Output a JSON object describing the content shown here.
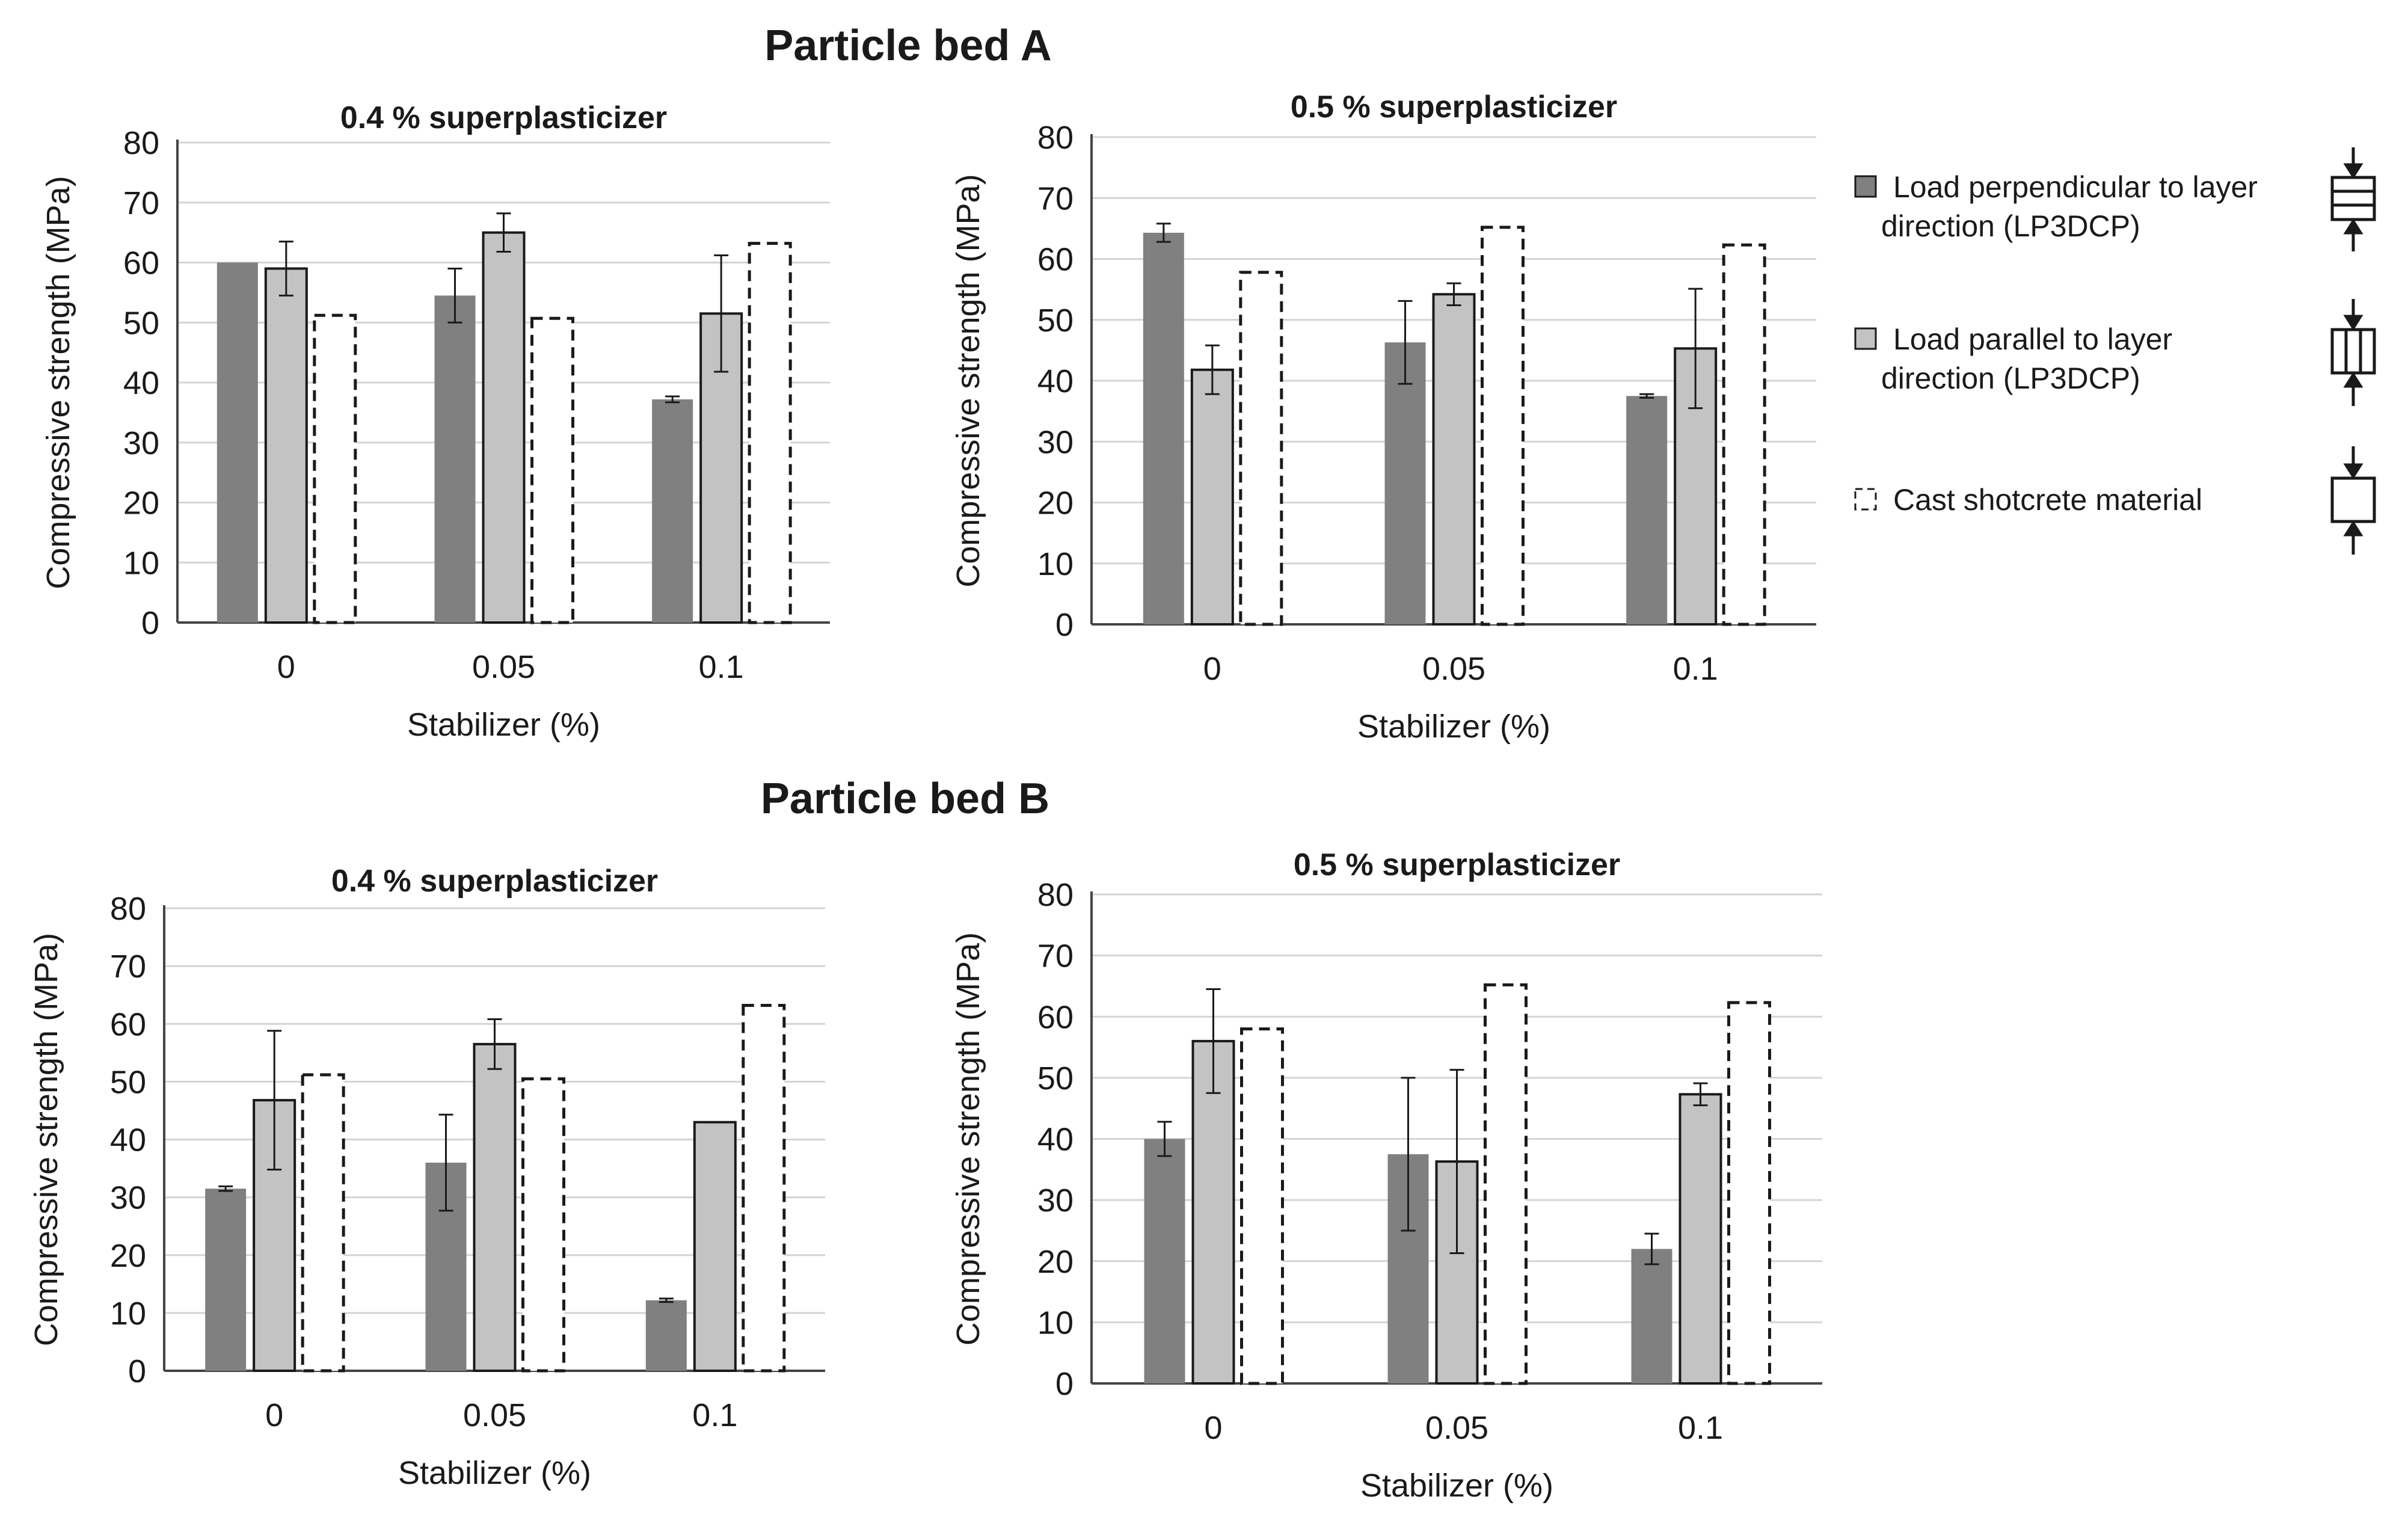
{
  "headings": {
    "bed_a": "Particle bed A",
    "bed_b": "Particle bed B"
  },
  "legend": [
    {
      "line1": "Load perpendicular to layer",
      "line2": "direction (LP3DCP)"
    },
    {
      "line1": "Load parallel to layer",
      "line2": "direction (LP3DCP)"
    },
    {
      "line1": "Cast shotcrete material",
      "line2": ""
    }
  ],
  "colors": {
    "perpendicular": "#808080",
    "parallel": "#c3c3c3",
    "cast": "#ffffff",
    "grid": "#d4d4d4",
    "text": "#1a1a1a"
  },
  "chart_data": [
    {
      "type": "bar",
      "group": "Particle bed A",
      "title": "0.4 % superplasticizer",
      "xlabel": "Stabilizer (%)",
      "ylabel": "Compressive strength (MPa)",
      "ylim": [
        0,
        80
      ],
      "yticks": [
        "0",
        "10",
        "20",
        "30",
        "40",
        "50",
        "60",
        "70",
        "80"
      ],
      "categories": [
        "0",
        "0.05",
        "0.1"
      ],
      "series": [
        {
          "name": "Load perpendicular to layer direction (LP3DCP)",
          "values": [
            60,
            54.5,
            37.2
          ],
          "errors": [
            0,
            4.5,
            0.5
          ]
        },
        {
          "name": "Load parallel to layer direction (LP3DCP)",
          "values": [
            59,
            65,
            51.5
          ],
          "errors": [
            4.5,
            3.2,
            9.7
          ]
        },
        {
          "name": "Cast shotcrete material",
          "values": [
            51.2,
            50.7,
            63.2
          ],
          "errors": [
            0,
            0,
            0
          ]
        }
      ]
    },
    {
      "type": "bar",
      "group": "Particle bed A",
      "title": "0.5 % superplasticizer",
      "xlabel": "Stabilizer (%)",
      "ylabel": "Compressive strength (MPa)",
      "ylim": [
        0,
        80
      ],
      "yticks": [
        "0",
        "10",
        "20",
        "30",
        "40",
        "50",
        "60",
        "70",
        "80"
      ],
      "categories": [
        "0",
        "0.05",
        "0.1"
      ],
      "series": [
        {
          "name": "Load perpendicular to layer direction (LP3DCP)",
          "values": [
            64.3,
            46.3,
            37.5
          ],
          "errors": [
            1.5,
            6.8,
            0.3
          ]
        },
        {
          "name": "Load parallel to layer direction (LP3DCP)",
          "values": [
            41.8,
            54.2,
            45.3
          ],
          "errors": [
            4,
            1.8,
            9.8
          ]
        },
        {
          "name": "Cast shotcrete material",
          "values": [
            57.8,
            65.2,
            62.3
          ],
          "errors": [
            0,
            0,
            0
          ]
        }
      ]
    },
    {
      "type": "bar",
      "group": "Particle bed B",
      "title": "0.4 % superplasticizer",
      "xlabel": "Stabilizer (%)",
      "ylabel": "Compressive strength (MPa)",
      "ylim": [
        0,
        80
      ],
      "yticks": [
        "0",
        "10",
        "20",
        "30",
        "40",
        "50",
        "60",
        "70",
        "80"
      ],
      "categories": [
        "0",
        "0.05",
        "0.1"
      ],
      "series": [
        {
          "name": "Load perpendicular to layer direction (LP3DCP)",
          "values": [
            31.5,
            36,
            12.2
          ],
          "errors": [
            0.4,
            8.3,
            0.3
          ]
        },
        {
          "name": "Load parallel to layer direction (LP3DCP)",
          "values": [
            46.8,
            56.5,
            43
          ],
          "errors": [
            12,
            4.3,
            0
          ]
        },
        {
          "name": "Cast shotcrete material",
          "values": [
            51.2,
            50.5,
            63.2
          ],
          "errors": [
            0,
            0,
            0
          ]
        }
      ]
    },
    {
      "type": "bar",
      "group": "Particle bed B",
      "title": "0.5 % superplasticizer",
      "xlabel": "Stabilizer (%)",
      "ylabel": "Compressive strength (MPa)",
      "ylim": [
        0,
        80
      ],
      "yticks": [
        "0",
        "10",
        "20",
        "30",
        "40",
        "50",
        "60",
        "70",
        "80"
      ],
      "categories": [
        "0",
        "0.05",
        "0.1"
      ],
      "series": [
        {
          "name": "Load perpendicular to layer direction (LP3DCP)",
          "values": [
            40,
            37.5,
            22
          ],
          "errors": [
            2.8,
            12.5,
            2.5
          ]
        },
        {
          "name": "Load parallel to layer direction (LP3DCP)",
          "values": [
            56,
            36.3,
            47.3
          ],
          "errors": [
            8.5,
            15,
            1.8
          ]
        },
        {
          "name": "Cast shotcrete material",
          "values": [
            58,
            65.2,
            62.3
          ],
          "errors": [
            0,
            0,
            0
          ]
        }
      ]
    }
  ]
}
